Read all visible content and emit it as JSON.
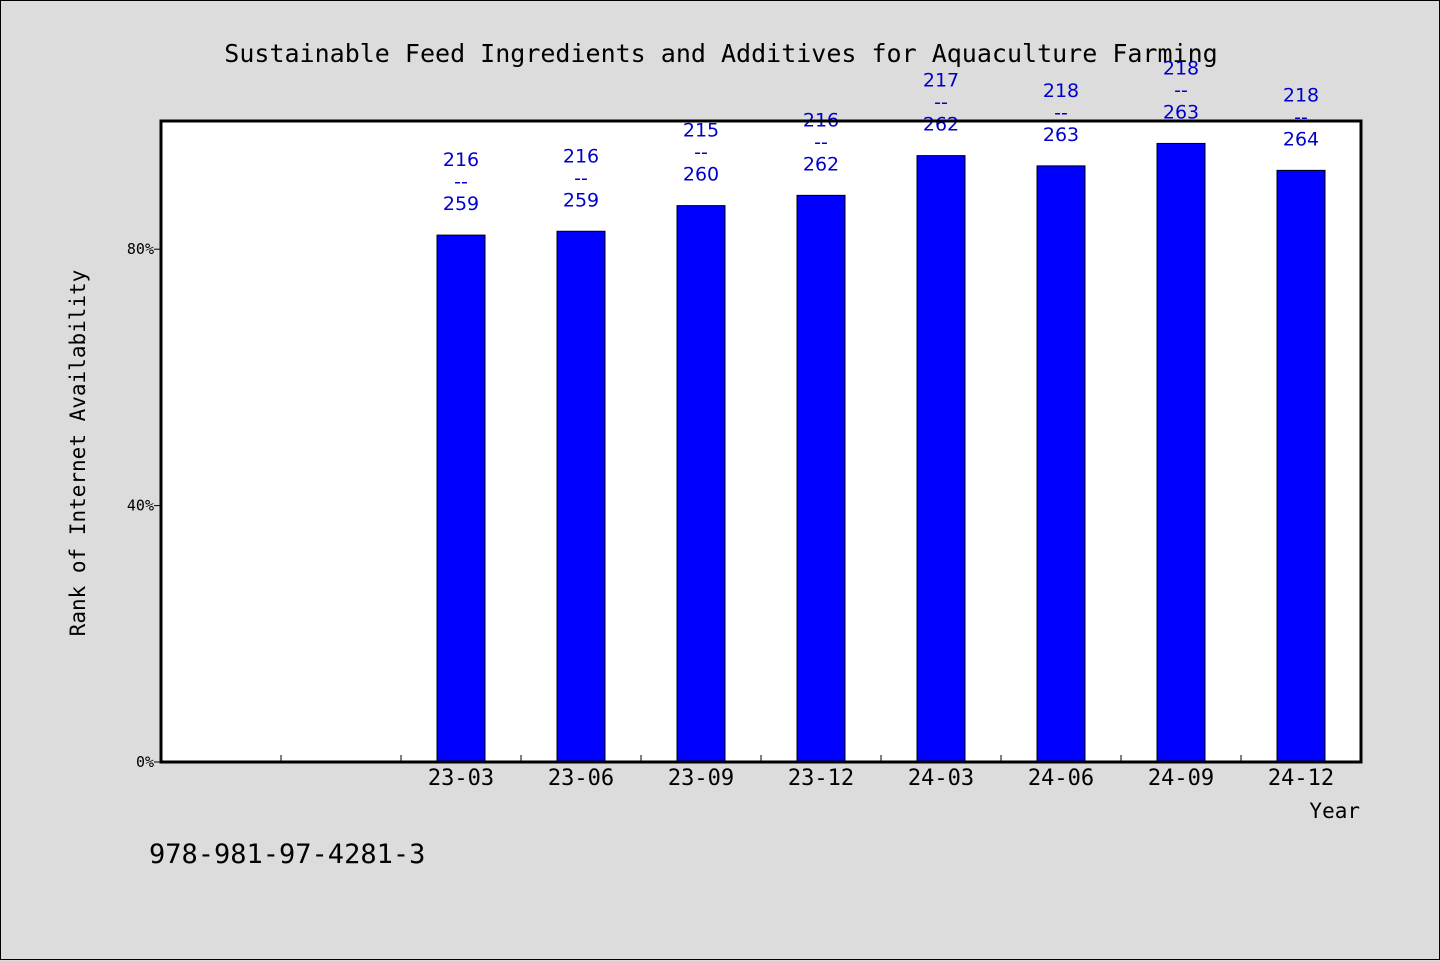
{
  "chart_data": {
    "type": "bar",
    "title": "Sustainable Feed Ingredients and Additives for Aquaculture Farming",
    "xlabel": "Year",
    "ylabel": "Rank of Internet Availability",
    "categories": [
      "",
      "",
      "23-03",
      "23-06",
      "23-09",
      "23-12",
      "24-03",
      "24-06",
      "24-09",
      "24-12"
    ],
    "values": [
      null,
      null,
      82.2,
      82.8,
      86.8,
      88.4,
      94.6,
      93.0,
      96.5,
      92.3
    ],
    "data_labels": [
      "",
      "",
      "216\n--\n259",
      "216\n--\n259",
      "215\n--\n260",
      "216\n--\n262",
      "217\n--\n262",
      "218\n--\n263",
      "218\n--\n263",
      "218\n--\n264"
    ],
    "yticks": [
      0,
      40,
      80
    ],
    "ytick_labels": [
      "0%",
      "40%",
      "80%"
    ],
    "ylim": [
      0,
      100
    ],
    "grid": false,
    "legend": "none",
    "bar_color": "#0000ff",
    "label_color": "#0000cc",
    "plot_background": "#ffffff",
    "page_background": "#dcdcdc"
  },
  "footnote": "978-981-97-4281-3"
}
